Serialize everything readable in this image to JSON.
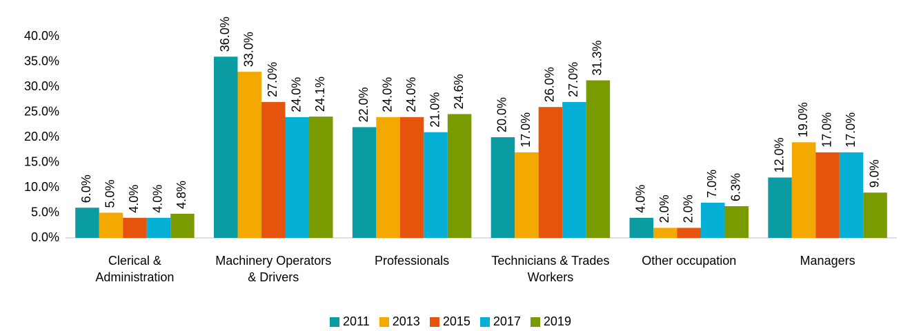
{
  "chart_data": {
    "type": "bar",
    "categories": [
      "Clerical & Administration",
      "Machinery Operators & Drivers",
      "Professionals",
      "Technicians & Trades Workers",
      "Other occupation",
      "Managers"
    ],
    "series": [
      {
        "name": "2011",
        "color": "#0a9ba3",
        "values": [
          6,
          36,
          22,
          20,
          4,
          12
        ],
        "value_labels": [
          "6.0%",
          "36.0%",
          "22.0%",
          "20.0%",
          "4.0%",
          "12.0%"
        ]
      },
      {
        "name": "2013",
        "color": "#f4a900",
        "values": [
          5,
          33,
          24,
          17,
          2,
          19
        ],
        "value_labels": [
          "5.0%",
          "33.0%",
          "24.0%",
          "17.0%",
          "2.0%",
          "19.0%"
        ]
      },
      {
        "name": "2015",
        "color": "#e5530c",
        "values": [
          4,
          27,
          24,
          26,
          2,
          17
        ],
        "value_labels": [
          "4.0%",
          "27.0%",
          "24.0%",
          "26.0%",
          "2.0%",
          "17.0%"
        ]
      },
      {
        "name": "2017",
        "color": "#06afd6",
        "values": [
          4,
          24,
          21,
          27,
          7,
          17
        ],
        "value_labels": [
          "4.0%",
          "24.0%",
          "21.0%",
          "27.0%",
          "7.0%",
          "17.0%"
        ]
      },
      {
        "name": "2019",
        "color": "#7a9a01",
        "values": [
          4.8,
          24.1,
          24.6,
          31.3,
          6.3,
          9
        ],
        "value_labels": [
          "4.8%",
          "24.1%",
          "24.6%",
          "31.3%",
          "6.3%",
          "9.0%"
        ]
      }
    ],
    "ylim": [
      0,
      40
    ],
    "yticks": [
      {
        "value": 0,
        "label": "0.0%"
      },
      {
        "value": 5,
        "label": "5.0%"
      },
      {
        "value": 10,
        "label": "10.0%"
      },
      {
        "value": 15,
        "label": "15.0%"
      },
      {
        "value": 20,
        "label": "20.0%"
      },
      {
        "value": 25,
        "label": "25.0%"
      },
      {
        "value": 30,
        "label": "30.0%"
      },
      {
        "value": 35,
        "label": "35.0%"
      },
      {
        "value": 40,
        "label": "40.0%"
      }
    ],
    "grid": false,
    "legend": "bottom"
  }
}
